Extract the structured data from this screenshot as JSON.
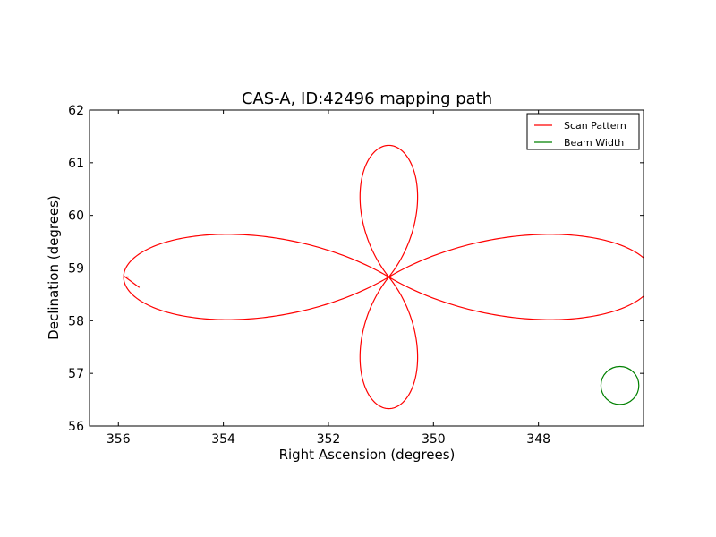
{
  "chart_data": {
    "type": "line",
    "title": "CAS-A, ID:42496 mapping path",
    "xlabel": "Right Ascension (degrees)",
    "ylabel": "Declination (degrees)",
    "xlim": [
      356.55,
      346.0
    ],
    "ylim": [
      56,
      62
    ],
    "x_inverted": true,
    "xticks": [
      356,
      354,
      352,
      350,
      348
    ],
    "yticks": [
      56,
      57,
      58,
      59,
      60,
      61,
      62
    ],
    "xtick_labels": [
      "356",
      "354",
      "352",
      "350",
      "348"
    ],
    "ytick_labels": [
      "56",
      "57",
      "58",
      "59",
      "60",
      "61",
      "62"
    ],
    "grid": false,
    "legend_position": "upper right",
    "series": [
      {
        "name": "Scan Pattern",
        "color": "#ff0000",
        "kind": "four-petal scan path",
        "center": [
          350.85,
          58.83
        ],
        "petal_extents_degrees": {
          "ra_east_west": 5.05,
          "dec_north_south": 2.5
        },
        "path_start": [
          355.8,
          58.83
        ],
        "path_end": [
          355.6,
          58.63
        ]
      },
      {
        "name": "Beam Width",
        "color": "#008000",
        "kind": "circle",
        "center": [
          346.45,
          56.77
        ],
        "radius_deg_dec": 0.36
      }
    ]
  }
}
